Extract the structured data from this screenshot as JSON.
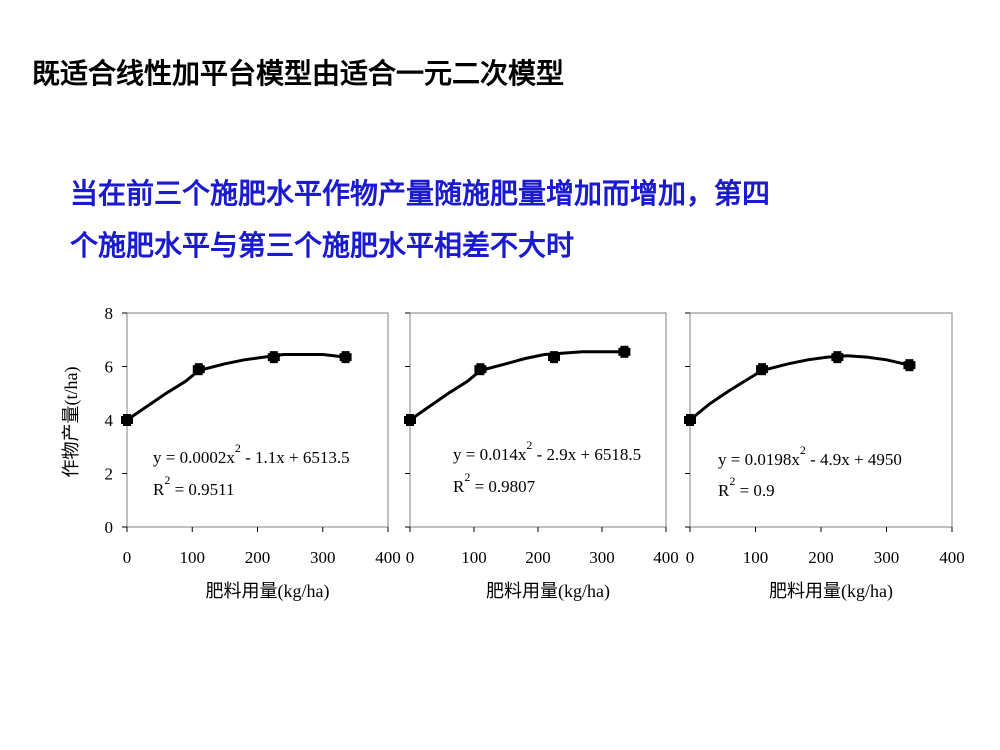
{
  "page": {
    "title": "既适合线性加平台模型由适合一元二次模型",
    "subtitle_lines": [
      "当在前三个施肥水平作物产量随施肥量增加而增加，第四",
      "个施肥水平与第三个施肥水平相差不大时"
    ],
    "accent_color": "#1a1ad0"
  },
  "chart_data": [
    {
      "type": "scatter",
      "xlabel": "肥料用量(kg/ha)",
      "ylabel": "作物产量(t/ha)",
      "xlim": [
        0,
        400
      ],
      "ylim": [
        0,
        8
      ],
      "xticks": [
        "0",
        "100",
        "200",
        "300",
        "400"
      ],
      "yticks": [
        "0",
        "2",
        "4",
        "6",
        "8"
      ],
      "points": [
        {
          "x": 0,
          "y": 4.0
        },
        {
          "x": 110,
          "y": 5.9
        },
        {
          "x": 225,
          "y": 6.35
        },
        {
          "x": 335,
          "y": 6.35
        }
      ],
      "curve": [
        [
          0,
          4.0
        ],
        [
          30,
          4.5
        ],
        [
          60,
          5.0
        ],
        [
          90,
          5.45
        ],
        [
          110,
          5.85
        ],
        [
          150,
          6.1
        ],
        [
          180,
          6.25
        ],
        [
          210,
          6.35
        ],
        [
          240,
          6.45
        ],
        [
          270,
          6.45
        ],
        [
          300,
          6.45
        ],
        [
          335,
          6.35
        ]
      ],
      "equation": {
        "pre": "y = 0.0002x",
        "exp": "2",
        "post": " - 1.1x + 6513.5"
      },
      "r2": {
        "base": "R",
        "exp": "2",
        "value": " = 0.9511"
      }
    },
    {
      "type": "scatter",
      "xlabel": "肥料用量(kg/ha)",
      "xlim": [
        0,
        400
      ],
      "ylim": [
        0,
        8
      ],
      "xticks": [
        "0",
        "100",
        "200",
        "300",
        "400"
      ],
      "points": [
        {
          "x": 0,
          "y": 4.0
        },
        {
          "x": 110,
          "y": 5.9
        },
        {
          "x": 225,
          "y": 6.35
        },
        {
          "x": 335,
          "y": 6.55
        }
      ],
      "curve": [
        [
          0,
          4.0
        ],
        [
          30,
          4.5
        ],
        [
          60,
          5.0
        ],
        [
          90,
          5.45
        ],
        [
          110,
          5.85
        ],
        [
          150,
          6.1
        ],
        [
          180,
          6.3
        ],
        [
          210,
          6.45
        ],
        [
          240,
          6.5
        ],
        [
          270,
          6.55
        ],
        [
          300,
          6.55
        ],
        [
          335,
          6.55
        ]
      ],
      "equation": {
        "pre": "y = 0.014x",
        "exp": "2",
        "post": " - 2.9x + 6518.5"
      },
      "r2": {
        "base": "R",
        "exp": "2",
        "value": " = 0.9807"
      }
    },
    {
      "type": "scatter",
      "xlabel": "肥料用量(kg/ha)",
      "xlim": [
        0,
        400
      ],
      "ylim": [
        0,
        8
      ],
      "xticks": [
        "0",
        "100",
        "200",
        "300",
        "400"
      ],
      "points": [
        {
          "x": 0,
          "y": 4.0
        },
        {
          "x": 110,
          "y": 5.9
        },
        {
          "x": 225,
          "y": 6.35
        },
        {
          "x": 335,
          "y": 6.05
        }
      ],
      "curve": [
        [
          0,
          4.0
        ],
        [
          30,
          4.6
        ],
        [
          60,
          5.1
        ],
        [
          90,
          5.55
        ],
        [
          110,
          5.85
        ],
        [
          150,
          6.1
        ],
        [
          180,
          6.25
        ],
        [
          210,
          6.35
        ],
        [
          240,
          6.4
        ],
        [
          270,
          6.35
        ],
        [
          300,
          6.25
        ],
        [
          335,
          6.05
        ]
      ],
      "equation": {
        "pre": "y = 0.0198x",
        "exp": "2",
        "post": " - 4.9x + 4950"
      },
      "r2": {
        "base": "R",
        "exp": "2",
        "value": " = 0.9"
      }
    }
  ]
}
